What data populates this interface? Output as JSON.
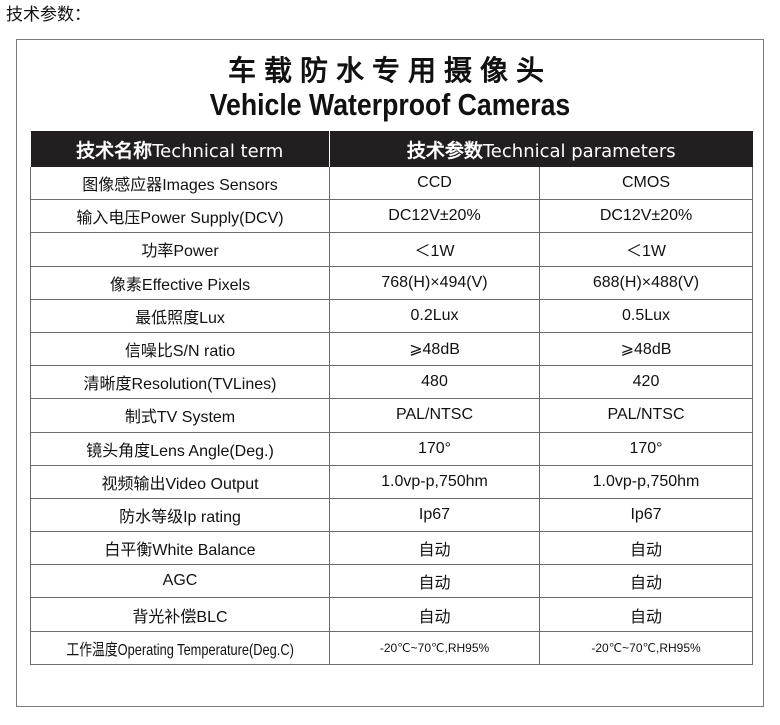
{
  "page_label": "技术参数：",
  "title_cn": "车载防水专用摄像头",
  "title_en": "Vehicle Waterproof Cameras",
  "table": {
    "headers": [
      {
        "cn": "技术名称",
        "en": "Technical term"
      },
      {
        "cn": "技术参数",
        "en": "Technical parameters"
      }
    ],
    "rows": [
      {
        "term": "图像感应器Images Sensors",
        "ccd": "CCD",
        "cmos": "CMOS"
      },
      {
        "term": "输入电压Power Supply(DCV)",
        "ccd": "DC12V±20%",
        "cmos": "DC12V±20%"
      },
      {
        "term": "功率Power",
        "ccd": "＜1W",
        "cmos": "＜1W"
      },
      {
        "term": "像素Effective Pixels",
        "ccd": "768(H)×494(V)",
        "cmos": "688(H)×488(V)"
      },
      {
        "term": "最低照度Lux",
        "ccd": "0.2Lux",
        "cmos": "0.5Lux"
      },
      {
        "term": "信噪比S/N ratio",
        "ccd": "⩾48dB",
        "cmos": "⩾48dB"
      },
      {
        "term": "清晰度Resolution(TVLines)",
        "ccd": "480",
        "cmos": "420"
      },
      {
        "term": "制式TV System",
        "ccd": "PAL/NTSC",
        "cmos": "PAL/NTSC"
      },
      {
        "term": "镜头角度Lens Angle(Deg.)",
        "ccd": "170°",
        "cmos": "170°"
      },
      {
        "term": "视频输出Video Output",
        "ccd": "1.0vp-p,750hm",
        "cmos": "1.0vp-p,750hm"
      },
      {
        "term": "防水等级Ip rating",
        "ccd": "Ip67",
        "cmos": "Ip67"
      },
      {
        "term": "白平衡White Balance",
        "ccd": "自动",
        "cmos": "自动"
      },
      {
        "term": "AGC",
        "ccd": "自动",
        "cmos": "自动"
      },
      {
        "term": "背光补偿BLC",
        "ccd": "自动",
        "cmos": "自动"
      },
      {
        "term": "工作温度Operating Temperature(Deg.C)",
        "ccd": "-20℃~70℃,RH95%",
        "cmos": "-20℃~70℃,RH95%"
      }
    ]
  }
}
